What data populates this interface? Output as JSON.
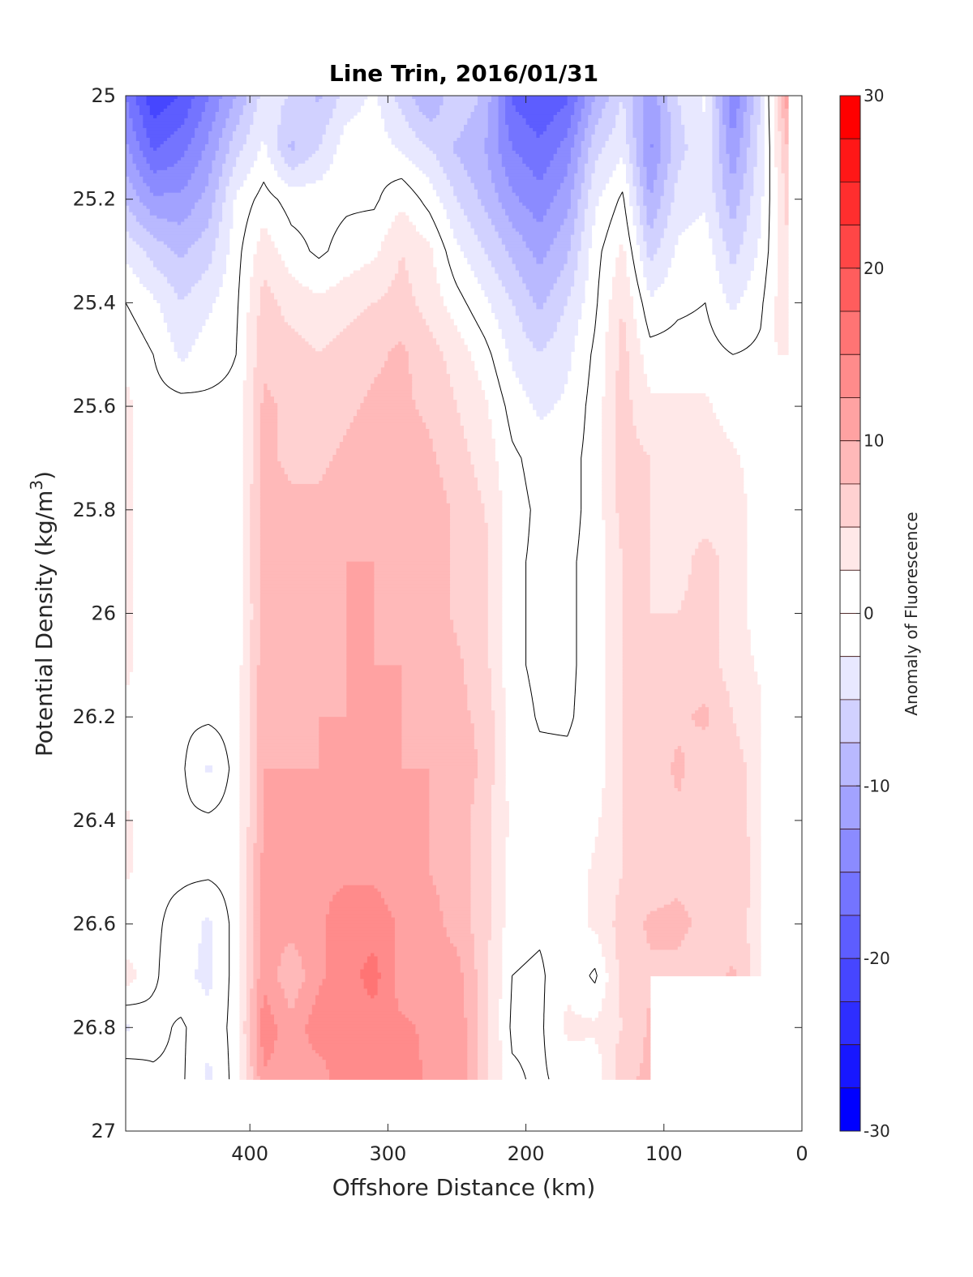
{
  "chart_data": {
    "type": "heatmap",
    "subtype": "filled-contour",
    "title": "Line Trin, 2016/01/31",
    "xlabel": "Offshore Distance (km)",
    "ylabel": {
      "text": "Potential Density (kg/m",
      "superscript": "3",
      "suffix": ")"
    },
    "colorbar_label": "Anomaly of Fluorescence",
    "xlim": [
      490,
      0
    ],
    "ylim": [
      27,
      25
    ],
    "y_reversed": true,
    "x_ticks": [
      "400",
      "300",
      "200",
      "100",
      "0"
    ],
    "x_tick_values": [
      400,
      300,
      200,
      100,
      0
    ],
    "y_ticks": [
      "25",
      "25.2",
      "25.4",
      "25.6",
      "25.8",
      "26",
      "26.2",
      "26.4",
      "26.6",
      "26.8",
      "27"
    ],
    "y_tick_values": [
      25,
      25.2,
      25.4,
      25.6,
      25.8,
      26,
      26.2,
      26.4,
      26.6,
      26.8,
      27
    ],
    "colorbar_ticks": [
      "30",
      "20",
      "10",
      "0",
      "-10",
      "-20",
      "-30"
    ],
    "colorbar_tick_values": [
      30,
      20,
      10,
      0,
      -10,
      -20,
      -30
    ],
    "clim": [
      -30,
      30
    ],
    "contour_step": 2.5,
    "zero_contour_color": "#000000",
    "positive_color": "#ff0000",
    "negative_color": "#0000ff",
    "x_km": [
      490,
      470,
      450,
      430,
      410,
      390,
      370,
      350,
      330,
      310,
      290,
      270,
      250,
      230,
      210,
      190,
      170,
      150,
      130,
      110,
      90,
      70,
      50,
      30,
      10
    ],
    "y_density": [
      25.0,
      25.1,
      25.2,
      25.3,
      25.4,
      25.5,
      25.6,
      25.7,
      25.8,
      25.9,
      26.0,
      26.1,
      26.2,
      26.3,
      26.4,
      26.5,
      26.6,
      26.7,
      26.8,
      26.9
    ],
    "z_by_distance": [
      [
        -15,
        -12,
        -8,
        -3,
        0,
        2,
        3,
        3,
        3,
        3,
        3,
        3,
        2,
        1,
        3,
        3,
        0,
        4,
        -3,
        2
      ],
      [
        -22,
        -18,
        -12,
        -6,
        -2,
        0,
        1,
        1,
        1,
        1,
        1,
        1,
        0.5,
        0.5,
        0.5,
        0.5,
        0.5,
        0.5,
        -1,
        0.5
      ],
      [
        -20,
        -16,
        -12,
        -8,
        -5,
        -3,
        1,
        0.5,
        0.5,
        0.5,
        0.5,
        0.5,
        0.5,
        0.5,
        0.5,
        0.5,
        -1,
        -2,
        0.5,
        0.5
      ],
      [
        -15,
        -12,
        -9,
        -6,
        -3,
        -1,
        0.5,
        0.5,
        0.5,
        0.5,
        0.5,
        0.5,
        0.5,
        -3,
        0.5,
        0.5,
        -3,
        -3,
        -2,
        -3
      ],
      [
        -10,
        -6,
        -2,
        -1,
        -0.5,
        0,
        0.5,
        0.5,
        0.5,
        0.5,
        1,
        1,
        1,
        1,
        1,
        1,
        1,
        1,
        1,
        1
      ],
      [
        -4,
        -2,
        1,
        4,
        6,
        7,
        8,
        8,
        9,
        9,
        8,
        9,
        9,
        10,
        10,
        11,
        11,
        12,
        14,
        12
      ],
      [
        -5,
        -8,
        -1,
        1,
        4,
        6,
        7,
        7,
        8,
        8,
        8,
        8,
        9,
        10,
        11,
        11,
        11,
        8,
        11,
        12
      ],
      [
        -8,
        -5,
        -1,
        -0.5,
        3,
        5,
        6,
        7,
        8,
        8,
        8,
        9,
        10,
        10,
        11,
        12,
        12,
        12,
        14,
        11
      ],
      [
        -4,
        -1,
        -0.5,
        1,
        4,
        6,
        7,
        8,
        9,
        10,
        10,
        10,
        10,
        11,
        11,
        12,
        14,
        14,
        13,
        15
      ],
      [
        -2,
        -1,
        -0.5,
        2,
        5,
        7,
        8,
        9,
        10,
        10,
        10,
        10,
        10,
        11,
        11,
        12,
        14,
        16,
        14,
        15
      ],
      [
        -6,
        -3,
        2,
        5,
        6,
        8,
        8,
        9,
        9,
        8,
        9,
        10,
        10,
        10,
        10,
        11,
        12,
        11,
        13,
        14
      ],
      [
        -10,
        -5,
        -1,
        3,
        4,
        6,
        7,
        8,
        9,
        9,
        9,
        9,
        9,
        10,
        10,
        10,
        11,
        12,
        12,
        12
      ],
      [
        -5,
        -8,
        -5,
        -2,
        1,
        4,
        5,
        6,
        7,
        7,
        7,
        8,
        8,
        9,
        9,
        9,
        9,
        11,
        12,
        12
      ],
      [
        -8,
        -10,
        -8,
        -5,
        -2,
        1,
        3,
        4,
        5,
        6,
        6,
        6,
        7,
        7,
        6,
        6,
        6,
        6,
        6,
        6
      ],
      [
        -18,
        -15,
        -12,
        -8,
        -5,
        -3,
        -1,
        0.5,
        1,
        0.5,
        0.5,
        0.5,
        1,
        1,
        2,
        1,
        1,
        0,
        -0.5,
        0.5
      ],
      [
        -20,
        -17,
        -14,
        -11,
        -8,
        -5,
        -3,
        -1,
        -0.5,
        -0.5,
        -0.5,
        -0.5,
        -0.2,
        0.5,
        0.5,
        0.5,
        0.5,
        -0.5,
        -0.5,
        -0.5
      ],
      [
        -18,
        -14,
        -11,
        -8,
        -5,
        -3,
        -2,
        -1,
        -1,
        -0.5,
        -0.5,
        -0.5,
        -0.3,
        0.5,
        0.5,
        0.5,
        1,
        2,
        3,
        1
      ],
      [
        -10,
        -6,
        -3,
        -1,
        -0.5,
        0.5,
        1,
        1,
        1,
        1,
        1,
        1,
        1,
        1,
        2,
        3,
        3,
        -0.5,
        3,
        0.5
      ],
      [
        -5,
        -3,
        0.5,
        3,
        5,
        6,
        6,
        6,
        6,
        5,
        5,
        5,
        5,
        5,
        5,
        5,
        6,
        6,
        5,
        7
      ],
      [
        -12,
        -13,
        -10,
        -6,
        -2,
        1,
        3,
        5,
        5,
        5,
        5,
        6,
        6,
        6,
        5,
        6,
        8,
        7,
        8,
        8
      ],
      [
        -5,
        -6,
        -4,
        -2,
        -0.5,
        1,
        3,
        4,
        4,
        4,
        5,
        7,
        7,
        8,
        7,
        7,
        8,
        7,
        null,
        null
      ],
      [
        -2,
        -3,
        -3,
        -1,
        0,
        1,
        3,
        4,
        4,
        6,
        6,
        6,
        8,
        6,
        7,
        7,
        7,
        6,
        null,
        null
      ],
      [
        -15,
        -12,
        -9,
        -6,
        -3,
        0,
        1,
        3,
        4,
        4,
        4,
        4,
        5,
        6,
        6,
        7,
        6,
        8,
        null,
        null
      ],
      [
        -5,
        -4,
        -3,
        -2,
        -0.5,
        0.5,
        1,
        1,
        1,
        1,
        1,
        2,
        3,
        4,
        4,
        4,
        4,
        3,
        2,
        2
      ],
      [
        12,
        8,
        6,
        5,
        5,
        4,
        null,
        null,
        null,
        null,
        null,
        null,
        null,
        null,
        null,
        null,
        null,
        null,
        null,
        null
      ]
    ]
  }
}
